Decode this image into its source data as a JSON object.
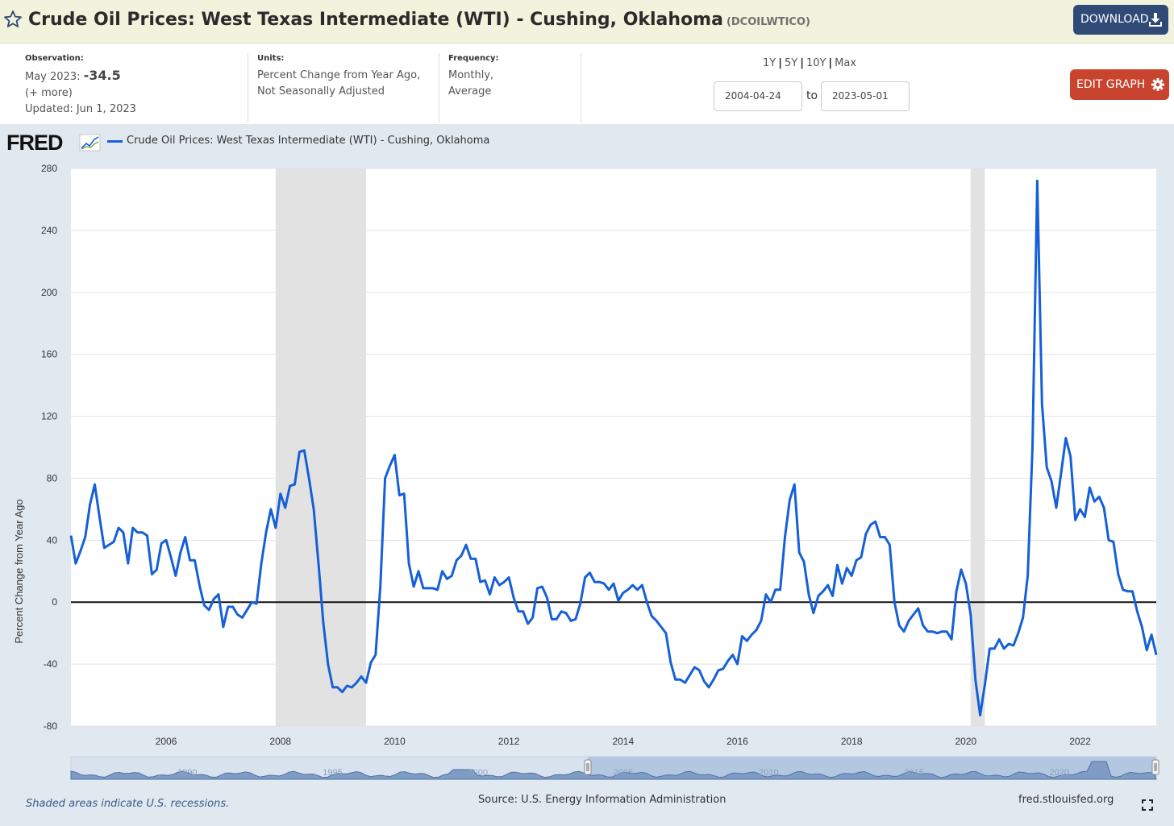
{
  "header": {
    "title": "Crude Oil Prices: West Texas Intermediate (WTI) - Cushing, Oklahoma",
    "series_id": "(DCOILWTICO)",
    "download_label": "DOWNLOAD"
  },
  "info": {
    "observation_label": "Observation:",
    "observation_date": "May 2023:",
    "observation_value": "-34.5",
    "more_link": "(+ more)",
    "updated": "Updated: Jun 1, 2023",
    "units_label": "Units:",
    "units_line1": "Percent Change from Year Ago,",
    "units_line2": "Not Seasonally Adjusted",
    "frequency_label": "Frequency:",
    "frequency_line1": "Monthly,",
    "frequency_line2": "Average"
  },
  "range": {
    "options": [
      "1Y",
      "5Y",
      "10Y",
      "Max"
    ],
    "start_date": "2004-04-24",
    "to_label": "to",
    "end_date": "2023-05-01",
    "edit_label": "EDIT GRAPH"
  },
  "footer": {
    "recession_note": "Shaded areas indicate U.S. recessions.",
    "source": "Source: U.S. Energy Information Administration",
    "site": "fred.stlouisfed.org"
  },
  "colors": {
    "series": "#1560d8",
    "recession": "#e2e2e2",
    "title_bar": "#f1f3dc",
    "download_button": "#2f4a77",
    "edit_button": "#c9442e"
  },
  "chart_data": {
    "type": "line",
    "legend": "Crude Oil Prices: West Texas Intermediate (WTI) - Cushing, Oklahoma",
    "ylabel": "Percent Change from Year Ago",
    "ylim": [
      -80,
      280
    ],
    "yticks": [
      -80,
      -40,
      0,
      40,
      80,
      120,
      160,
      200,
      240,
      280
    ],
    "xlim": [
      "2004-05",
      "2023-05"
    ],
    "xticks": [
      "2006",
      "2008",
      "2010",
      "2012",
      "2014",
      "2016",
      "2018",
      "2020",
      "2022"
    ],
    "grid": "horizontal",
    "zero_line": true,
    "recessions": [
      [
        "2007-12",
        "2009-06"
      ],
      [
        "2020-02",
        "2020-04"
      ]
    ],
    "navigator_labels": [
      "1990",
      "1995",
      "2000",
      "2005",
      "2010",
      "2015",
      "2020"
    ],
    "series": [
      {
        "name": "Crude Oil Prices: West Texas Intermediate (WTI) - Cushing, Oklahoma",
        "x": [
          "2004-05",
          "2004-06",
          "2004-07",
          "2004-08",
          "2004-09",
          "2004-10",
          "2004-11",
          "2004-12",
          "2005-01",
          "2005-02",
          "2005-03",
          "2005-04",
          "2005-05",
          "2005-06",
          "2005-07",
          "2005-08",
          "2005-09",
          "2005-10",
          "2005-11",
          "2005-12",
          "2006-01",
          "2006-02",
          "2006-03",
          "2006-04",
          "2006-05",
          "2006-06",
          "2006-07",
          "2006-08",
          "2006-09",
          "2006-10",
          "2006-11",
          "2006-12",
          "2007-01",
          "2007-02",
          "2007-03",
          "2007-04",
          "2007-05",
          "2007-06",
          "2007-07",
          "2007-08",
          "2007-09",
          "2007-10",
          "2007-11",
          "2007-12",
          "2008-01",
          "2008-02",
          "2008-03",
          "2008-04",
          "2008-05",
          "2008-06",
          "2008-07",
          "2008-08",
          "2008-09",
          "2008-10",
          "2008-11",
          "2008-12",
          "2009-01",
          "2009-02",
          "2009-03",
          "2009-04",
          "2009-05",
          "2009-06",
          "2009-07",
          "2009-08",
          "2009-09",
          "2009-10",
          "2009-11",
          "2009-12",
          "2010-01",
          "2010-02",
          "2010-03",
          "2010-04",
          "2010-05",
          "2010-06",
          "2010-07",
          "2010-08",
          "2010-09",
          "2010-10",
          "2010-11",
          "2010-12",
          "2011-01",
          "2011-02",
          "2011-03",
          "2011-04",
          "2011-05",
          "2011-06",
          "2011-07",
          "2011-08",
          "2011-09",
          "2011-10",
          "2011-11",
          "2011-12",
          "2012-01",
          "2012-02",
          "2012-03",
          "2012-04",
          "2012-05",
          "2012-06",
          "2012-07",
          "2012-08",
          "2012-09",
          "2012-10",
          "2012-11",
          "2012-12",
          "2013-01",
          "2013-02",
          "2013-03",
          "2013-04",
          "2013-05",
          "2013-06",
          "2013-07",
          "2013-08",
          "2013-09",
          "2013-10",
          "2013-11",
          "2013-12",
          "2014-01",
          "2014-02",
          "2014-03",
          "2014-04",
          "2014-05",
          "2014-06",
          "2014-07",
          "2014-08",
          "2014-09",
          "2014-10",
          "2014-11",
          "2014-12",
          "2015-01",
          "2015-02",
          "2015-03",
          "2015-04",
          "2015-05",
          "2015-06",
          "2015-07",
          "2015-08",
          "2015-09",
          "2015-10",
          "2015-11",
          "2015-12",
          "2016-01",
          "2016-02",
          "2016-03",
          "2016-04",
          "2016-05",
          "2016-06",
          "2016-07",
          "2016-08",
          "2016-09",
          "2016-10",
          "2016-11",
          "2016-12",
          "2017-01",
          "2017-02",
          "2017-03",
          "2017-04",
          "2017-05",
          "2017-06",
          "2017-07",
          "2017-08",
          "2017-09",
          "2017-10",
          "2017-11",
          "2017-12",
          "2018-01",
          "2018-02",
          "2018-03",
          "2018-04",
          "2018-05",
          "2018-06",
          "2018-07",
          "2018-08",
          "2018-09",
          "2018-10",
          "2018-11",
          "2018-12",
          "2019-01",
          "2019-02",
          "2019-03",
          "2019-04",
          "2019-05",
          "2019-06",
          "2019-07",
          "2019-08",
          "2019-09",
          "2019-10",
          "2019-11",
          "2019-12",
          "2020-01",
          "2020-02",
          "2020-03",
          "2020-04",
          "2020-05",
          "2020-06",
          "2020-07",
          "2020-08",
          "2020-09",
          "2020-10",
          "2020-11",
          "2020-12",
          "2021-01",
          "2021-02",
          "2021-03",
          "2021-04",
          "2021-05",
          "2021-06",
          "2021-07",
          "2021-08",
          "2021-09",
          "2021-10",
          "2021-11",
          "2021-12",
          "2022-01",
          "2022-02",
          "2022-03",
          "2022-04",
          "2022-05",
          "2022-06",
          "2022-07",
          "2022-08",
          "2022-09",
          "2022-10",
          "2022-11",
          "2022-12",
          "2023-01",
          "2023-02",
          "2023-03",
          "2023-04",
          "2023-05"
        ],
        "values": [
          43,
          25,
          33,
          42,
          63,
          76,
          55,
          35,
          37,
          39,
          48,
          45,
          25,
          48,
          45,
          45,
          43,
          18,
          21,
          38,
          40,
          29,
          17,
          32,
          42,
          27,
          27,
          11,
          -2,
          -5,
          2,
          5,
          -16,
          -3,
          -3,
          -8,
          -10,
          -5,
          0,
          -1,
          25,
          45,
          60,
          48,
          70,
          61,
          75,
          76,
          97,
          98,
          80,
          60,
          25,
          -13,
          -40,
          -55,
          -55,
          -58,
          -54,
          -55,
          -52,
          -48,
          -52,
          -39,
          -34,
          10,
          80,
          88,
          95,
          69,
          70,
          25,
          10,
          20,
          9,
          9,
          9,
          8,
          20,
          15,
          17,
          27,
          30,
          37,
          28,
          28,
          13,
          14,
          5,
          16,
          11,
          13,
          16,
          3,
          -6,
          -6,
          -14,
          -10,
          9,
          10,
          3,
          -11,
          -11,
          -6,
          -7,
          -12,
          -11,
          -1,
          16,
          19,
          13,
          13,
          12,
          8,
          12,
          1,
          6,
          8,
          11,
          8,
          11,
          0,
          -9,
          -12,
          -16,
          -20,
          -39,
          -50,
          -50,
          -52,
          -47,
          -42,
          -44,
          -51,
          -55,
          -50,
          -44,
          -43,
          -38,
          -34,
          -40,
          -22,
          -25,
          -21,
          -18,
          -12,
          5,
          0,
          8,
          8,
          42,
          66,
          76,
          32,
          26,
          5,
          -7,
          4,
          7,
          11,
          4,
          24,
          12,
          22,
          17,
          27,
          29,
          44,
          50,
          52,
          42,
          42,
          37,
          0,
          -15,
          -19,
          -12,
          -8,
          -4,
          -15,
          -19,
          -19,
          -20,
          -19,
          -19,
          -24,
          7,
          21,
          12,
          -8,
          -50,
          -73,
          -53,
          -30,
          -30,
          -24,
          -30,
          -27,
          -28,
          -20,
          -10,
          17,
          100,
          272,
          128,
          87,
          78,
          61,
          83,
          106,
          94,
          53,
          60,
          55,
          74,
          65,
          68,
          61,
          40,
          39,
          18,
          8,
          7,
          7,
          -6,
          -16,
          -31,
          -21,
          -34
        ]
      }
    ]
  }
}
